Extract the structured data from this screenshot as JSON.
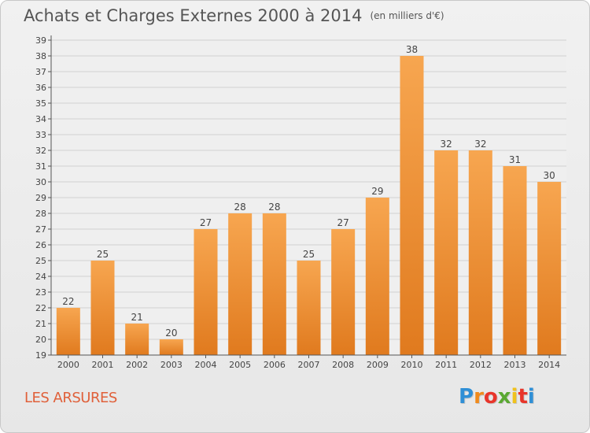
{
  "header": {
    "title": "Achats et Charges Externes 2000 à 2014",
    "unit": "(en milliers d'€)"
  },
  "commune": "LES ARSURES",
  "logo": {
    "text": "Proxiti",
    "letter_colors": [
      "#2f8fd6",
      "#f08a1c",
      "#e8352a",
      "#5aa832",
      "#f0c21c",
      "#e8352a",
      "#2f8fd6"
    ]
  },
  "colors": {
    "bar_light": "#f7a650",
    "bar_dark": "#e07a1e",
    "grid": "#d0d0d0",
    "axis": "#555555",
    "text": "#444444"
  },
  "chart_data": {
    "type": "bar",
    "categories": [
      "2000",
      "2001",
      "2002",
      "2003",
      "2004",
      "2005",
      "2006",
      "2007",
      "2008",
      "2009",
      "2010",
      "2011",
      "2012",
      "2013",
      "2014"
    ],
    "values": [
      22,
      25,
      21,
      20,
      27,
      28,
      28,
      25,
      27,
      29,
      38,
      32,
      32,
      31,
      30
    ],
    "data_labels": [
      "22",
      "25",
      "21",
      "20",
      "27",
      "28",
      "28",
      "25",
      "27",
      "29",
      "38",
      "32",
      "32",
      "31",
      "30"
    ],
    "title": "Achats et Charges Externes 2000 à 2014",
    "ylim": [
      19,
      39
    ],
    "yticks": [
      "19",
      "20",
      "21",
      "22",
      "23",
      "24",
      "25",
      "26",
      "27",
      "28",
      "29",
      "30",
      "31",
      "32",
      "33",
      "34",
      "35",
      "36",
      "37",
      "38",
      "39"
    ],
    "grid": true,
    "legend": "none"
  }
}
